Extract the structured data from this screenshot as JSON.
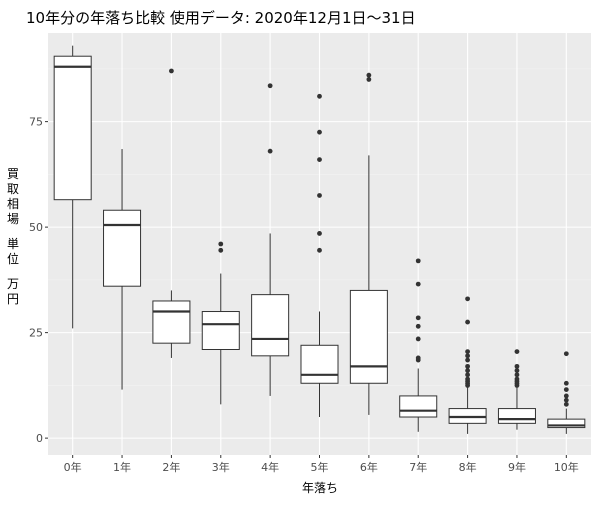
{
  "chart_data": {
    "type": "boxplot",
    "title": "10年分の年落ち比較 使用データ: 2020年12月1日～31日",
    "xlabel": "年落ち",
    "ylabel": "買取相場 単位 万円",
    "ylim": [
      -4,
      96
    ],
    "yticks": [
      0,
      25,
      50,
      75
    ],
    "grid": true,
    "legend": "none",
    "colors": {
      "panel": "#ebebeb",
      "grid_major": "#ffffff",
      "grid_minor": "#f4f4f4",
      "box_fill": "#ffffff",
      "line": "#333333"
    },
    "categories": [
      "0年",
      "1年",
      "2年",
      "3年",
      "4年",
      "5年",
      "6年",
      "7年",
      "8年",
      "9年",
      "10年"
    ],
    "boxes": [
      {
        "min": 26,
        "q1": 56.5,
        "median": 88,
        "q3": 90.5,
        "max": 93,
        "outliers": []
      },
      {
        "min": 11.5,
        "q1": 36,
        "median": 50.5,
        "q3": 54,
        "max": 68.5,
        "outliers": []
      },
      {
        "min": 19,
        "q1": 22.5,
        "median": 30,
        "q3": 32.5,
        "max": 35,
        "outliers": [
          87
        ]
      },
      {
        "min": 8,
        "q1": 21,
        "median": 27,
        "q3": 30,
        "max": 39,
        "outliers": [
          44.5,
          46
        ]
      },
      {
        "min": 10,
        "q1": 19.5,
        "median": 23.5,
        "q3": 34,
        "max": 48.5,
        "outliers": [
          68,
          83.5
        ]
      },
      {
        "min": 5,
        "q1": 13,
        "median": 15,
        "q3": 22,
        "max": 30,
        "outliers": [
          44.5,
          48.5,
          57.5,
          66,
          72.5,
          81
        ]
      },
      {
        "min": 5.5,
        "q1": 13,
        "median": 17,
        "q3": 35,
        "max": 67,
        "outliers": [
          85,
          86
        ]
      },
      {
        "min": 1.5,
        "q1": 5,
        "median": 6.5,
        "q3": 10,
        "max": 16.5,
        "outliers": [
          18.5,
          19,
          23.5,
          26.5,
          28.5,
          36.5,
          42
        ]
      },
      {
        "min": 1,
        "q1": 3.5,
        "median": 5,
        "q3": 7,
        "max": 12,
        "outliers": [
          12.5,
          13,
          13.5,
          14,
          15,
          16,
          17,
          18.5,
          19.5,
          20.5,
          27.5,
          33
        ]
      },
      {
        "min": 2,
        "q1": 3.5,
        "median": 4.5,
        "q3": 7,
        "max": 12,
        "outliers": [
          12.5,
          13,
          13.5,
          14,
          15,
          16,
          17,
          20.5
        ]
      },
      {
        "min": 1,
        "q1": 2.5,
        "median": 3,
        "q3": 4.5,
        "max": 7,
        "outliers": [
          8,
          9,
          10,
          11.5,
          13,
          20
        ]
      }
    ]
  }
}
